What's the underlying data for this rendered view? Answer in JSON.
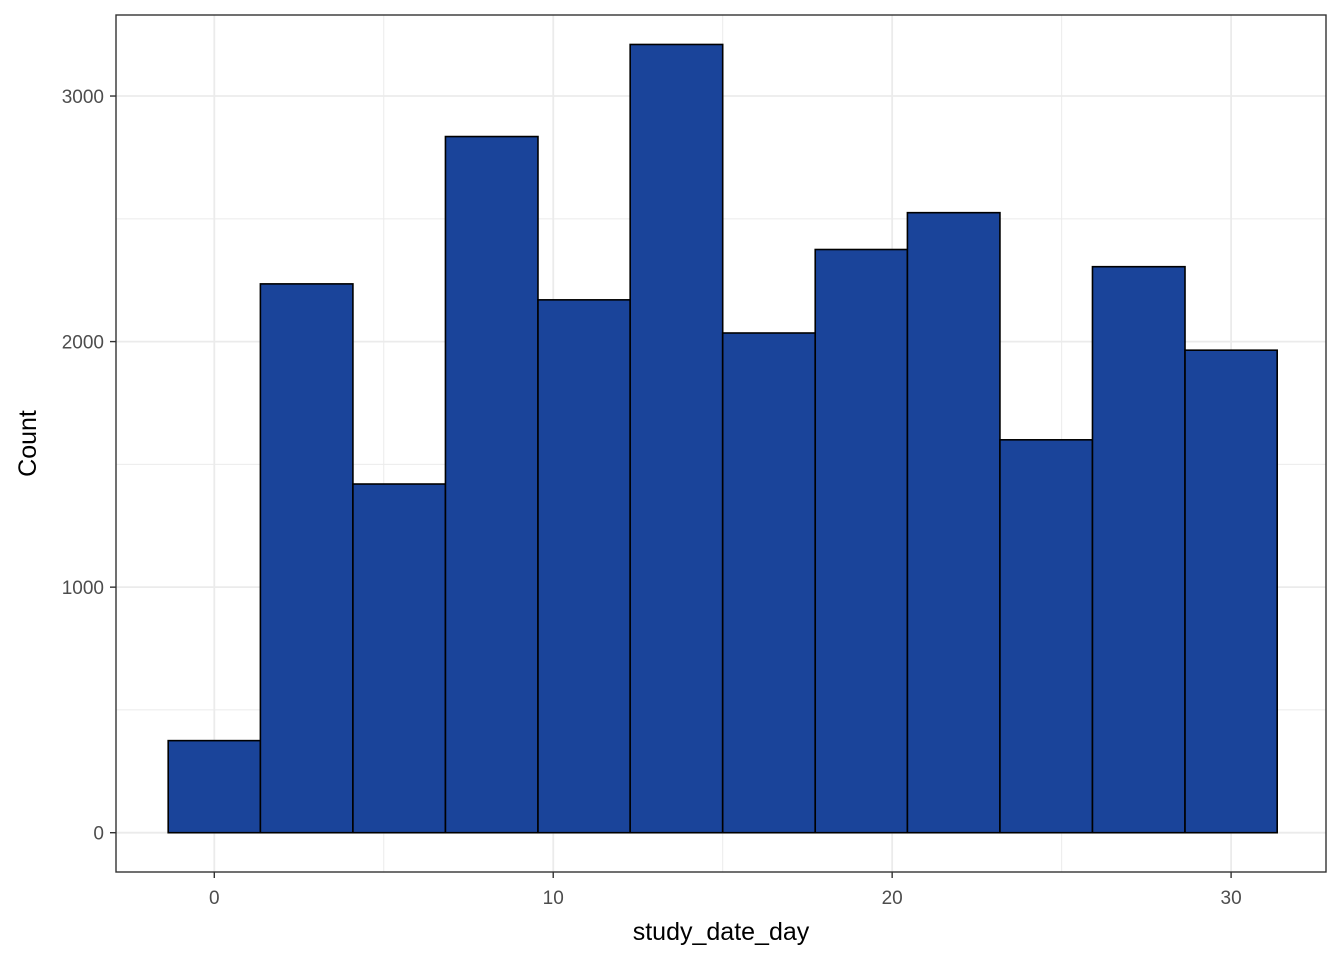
{
  "chart_data": {
    "type": "bar",
    "histogram": true,
    "xlabel": "study_date_day",
    "ylabel": "Count",
    "xlim": [
      -2.9,
      32.8
    ],
    "ylim": [
      -160,
      3330
    ],
    "x_ticks": [
      0,
      10,
      20,
      30
    ],
    "x_minor_ticks": [
      5,
      15,
      25
    ],
    "y_ticks": [
      0,
      1000,
      2000,
      3000
    ],
    "y_minor_ticks": [
      500,
      1500,
      2500
    ],
    "grid": true,
    "bin_edges": [
      -1.36,
      1.36,
      4.09,
      6.82,
      9.55,
      12.27,
      15.0,
      17.73,
      20.45,
      23.18,
      25.91,
      28.64,
      31.36
    ],
    "values": [
      375,
      2235,
      1420,
      2835,
      2170,
      3210,
      2035,
      2375,
      2525,
      1600,
      2305,
      1965
    ],
    "colors": {
      "fill": "#1A449A",
      "stroke": "#000000",
      "grid": "#EBEBEB",
      "panel_border": "#333333"
    }
  }
}
